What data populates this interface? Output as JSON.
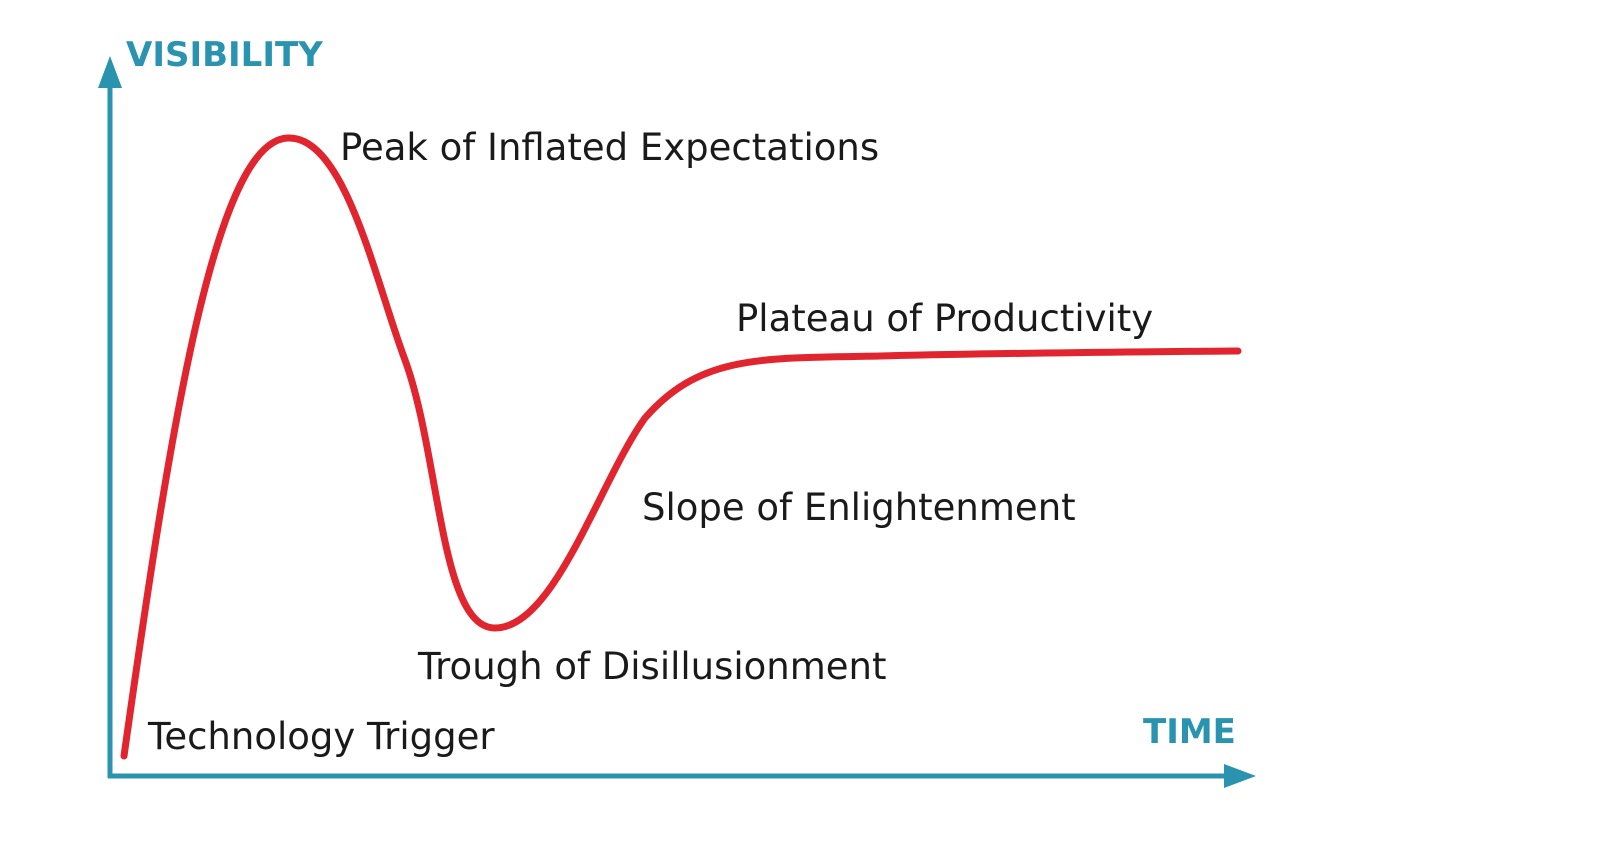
{
  "diagram": {
    "y_axis_label": "VISIBILITY",
    "x_axis_label": "TIME",
    "phases": [
      {
        "id": "trigger",
        "label": "Technology Trigger"
      },
      {
        "id": "peak",
        "label": "Peak of Inflated Expectations"
      },
      {
        "id": "trough",
        "label": "Trough of Disillusionment"
      },
      {
        "id": "slope",
        "label": "Slope of Enlightenment"
      },
      {
        "id": "plateau",
        "label": "Plateau of Productivity"
      }
    ],
    "colors": {
      "axis": "#2a93b0",
      "curve": "#e0252f",
      "label_text": "#1a1a1a",
      "background": "#ffffff"
    }
  }
}
